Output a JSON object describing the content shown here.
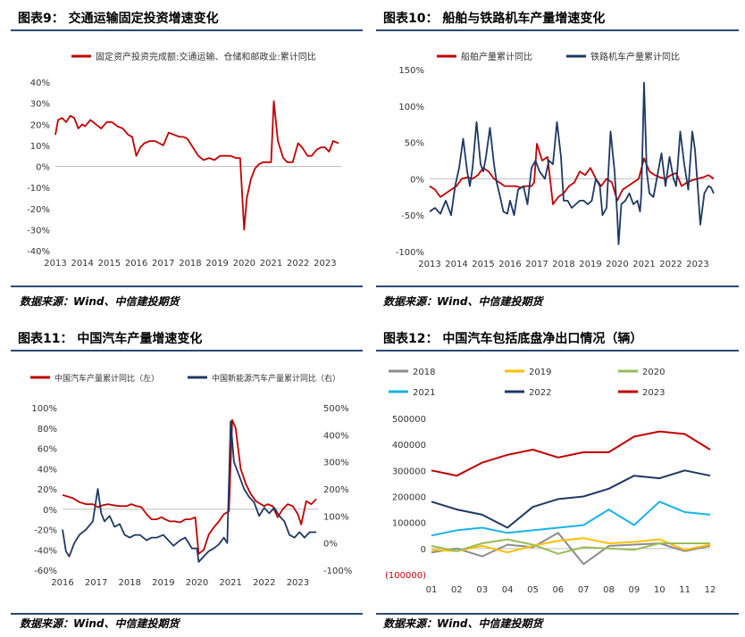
{
  "charts": [
    {
      "title": "图表9： 交通运输固定投资增速变化",
      "source": "数据来源：Wind、中信建投期货",
      "chart_data": {
        "type": "line",
        "legend_position": "top",
        "x_ticks": [
          "2013",
          "2014",
          "2015",
          "2016",
          "2017",
          "2018",
          "2019",
          "2020",
          "2021",
          "2022",
          "2023"
        ],
        "xlim": [
          2013.0,
          2023.6
        ],
        "ylim": [
          -40,
          40
        ],
        "y_ticks": [
          -40,
          -30,
          -20,
          -10,
          0,
          10,
          20,
          30,
          40
        ],
        "y_tick_labels": [
          "-40%",
          "-30%",
          "-20%",
          "-10%",
          "0%",
          "10%",
          "20%",
          "30%",
          "40%"
        ],
        "series": [
          {
            "name": "固定资产投资完成额:交通运输、仓储和邮政业:累计同比",
            "color": "#c00000",
            "axis": "left",
            "x": [
              2013.0,
              2013.1,
              2013.25,
              2013.4,
              2013.55,
              2013.7,
              2013.85,
              2014.0,
              2014.1,
              2014.3,
              2014.5,
              2014.7,
              2014.9,
              2015.1,
              2015.3,
              2015.5,
              2015.7,
              2015.85,
              2016.0,
              2016.15,
              2016.3,
              2016.5,
              2016.7,
              2016.85,
              2017.0,
              2017.2,
              2017.4,
              2017.6,
              2017.75,
              2017.9,
              2018.1,
              2018.3,
              2018.5,
              2018.7,
              2018.9,
              2019.1,
              2019.3,
              2019.5,
              2019.7,
              2019.85,
              2020.0,
              2020.1,
              2020.25,
              2020.4,
              2020.55,
              2020.7,
              2020.85,
              2021.0,
              2021.1,
              2021.25,
              2021.45,
              2021.6,
              2021.8,
              2022.0,
              2022.15,
              2022.35,
              2022.5,
              2022.7,
              2022.85,
              2023.0,
              2023.15,
              2023.3,
              2023.5
            ],
            "y": [
              15,
              22,
              23,
              21,
              24,
              23,
              18,
              20,
              19,
              22,
              20,
              18,
              21,
              21,
              19,
              18,
              15,
              14,
              5,
              9,
              11,
              12,
              12,
              11,
              10,
              16,
              15,
              14,
              14,
              13,
              9,
              5,
              3,
              4,
              3,
              5,
              5,
              5,
              4,
              4,
              -30,
              -15,
              -6,
              -1,
              1,
              2,
              2,
              2,
              31,
              12,
              4,
              2,
              2,
              11,
              9,
              5,
              5,
              8,
              9,
              9,
              7,
              12,
              11
            ]
          }
        ]
      }
    },
    {
      "title": "图表10： 船舶与铁路机车产量增速变化",
      "source": "数据来源：Wind、中信建投期货",
      "chart_data": {
        "type": "line",
        "legend_position": "top",
        "x_ticks": [
          "2013",
          "2014",
          "2015",
          "2016",
          "2017",
          "2018",
          "2019",
          "2020",
          "2021",
          "2022",
          "2023"
        ],
        "xlim": [
          2013.0,
          2023.6
        ],
        "ylim": [
          -100,
          150
        ],
        "y_ticks": [
          -100,
          -50,
          0,
          50,
          100,
          150
        ],
        "y_tick_labels": [
          "-100%",
          "-50%",
          "0%",
          "50%",
          "100%",
          "150%"
        ],
        "series": [
          {
            "name": "船舶产量累计同比",
            "color": "#c00000",
            "axis": "left",
            "x": [
              2013.0,
              2013.2,
              2013.4,
              2013.6,
              2013.8,
              2014.0,
              2014.2,
              2014.4,
              2014.6,
              2014.8,
              2015.0,
              2015.2,
              2015.4,
              2015.6,
              2015.8,
              2016.0,
              2016.2,
              2016.4,
              2016.6,
              2016.8,
              2016.9,
              2017.0,
              2017.2,
              2017.4,
              2017.6,
              2017.8,
              2018.0,
              2018.2,
              2018.4,
              2018.6,
              2018.8,
              2019.0,
              2019.2,
              2019.4,
              2019.6,
              2019.8,
              2020.0,
              2020.2,
              2020.4,
              2020.6,
              2020.8,
              2021.0,
              2021.2,
              2021.4,
              2021.6,
              2021.8,
              2022.0,
              2022.2,
              2022.4,
              2022.6,
              2022.8,
              2023.0,
              2023.2,
              2023.4,
              2023.6
            ],
            "y": [
              -10,
              -15,
              -25,
              -20,
              -15,
              -10,
              0,
              2,
              0,
              5,
              15,
              10,
              0,
              -5,
              -10,
              -10,
              -10,
              -12,
              -10,
              -10,
              -5,
              48,
              25,
              30,
              -35,
              -25,
              -20,
              -10,
              -5,
              10,
              5,
              15,
              0,
              -10,
              0,
              -5,
              -30,
              -15,
              -10,
              -5,
              0,
              28,
              10,
              5,
              2,
              0,
              5,
              8,
              -10,
              -5,
              -2,
              0,
              2,
              5,
              0
            ]
          },
          {
            "name": "铁路机车产量累计同比",
            "color": "#1f3864",
            "axis": "left",
            "x": [
              2013.0,
              2013.2,
              2013.4,
              2013.6,
              2013.8,
              2013.95,
              2014.1,
              2014.25,
              2014.4,
              2014.5,
              2014.6,
              2014.75,
              2014.9,
              2015.0,
              2015.1,
              2015.25,
              2015.4,
              2015.5,
              2015.6,
              2015.75,
              2015.9,
              2016.0,
              2016.15,
              2016.3,
              2016.5,
              2016.65,
              2016.8,
              2016.95,
              2017.1,
              2017.3,
              2017.45,
              2017.6,
              2017.75,
              2017.9,
              2018.0,
              2018.15,
              2018.3,
              2018.45,
              2018.6,
              2018.75,
              2018.9,
              2019.05,
              2019.2,
              2019.35,
              2019.45,
              2019.6,
              2019.75,
              2019.9,
              2020.0,
              2020.05,
              2020.15,
              2020.3,
              2020.45,
              2020.6,
              2020.75,
              2020.85,
              2020.9,
              2021.0,
              2021.1,
              2021.2,
              2021.35,
              2021.5,
              2021.65,
              2021.8,
              2021.95,
              2022.1,
              2022.2,
              2022.35,
              2022.5,
              2022.65,
              2022.8,
              2022.9,
              2023.0,
              2023.1,
              2023.25,
              2023.4,
              2023.5,
              2023.6
            ],
            "y": [
              -45,
              -40,
              -48,
              -30,
              -50,
              -10,
              15,
              55,
              10,
              -10,
              15,
              78,
              20,
              10,
              30,
              70,
              20,
              -5,
              -20,
              -45,
              -48,
              -30,
              -50,
              -15,
              -10,
              -35,
              15,
              25,
              10,
              0,
              25,
              20,
              78,
              30,
              -30,
              -30,
              -40,
              -35,
              -30,
              -30,
              -35,
              -30,
              0,
              -10,
              -50,
              -40,
              65,
              10,
              -50,
              -90,
              -35,
              -30,
              -20,
              -35,
              -30,
              -45,
              -20,
              132,
              10,
              -20,
              -25,
              5,
              35,
              -10,
              30,
              0,
              -10,
              65,
              20,
              -15,
              65,
              40,
              -10,
              -63,
              -20,
              -10,
              -12,
              -20
            ]
          }
        ]
      }
    },
    {
      "title": "图表11： 中国汽车产量增速变化",
      "source": "数据来源：Wind、中信建投期货",
      "chart_data": {
        "type": "line",
        "legend_position": "top",
        "x_ticks": [
          "2016",
          "2017",
          "2018",
          "2019",
          "2020",
          "2021",
          "2022",
          "2023"
        ],
        "xlim": [
          2016.0,
          2023.6
        ],
        "ylim": [
          -60,
          100
        ],
        "y_ticks": [
          -60,
          -40,
          -20,
          0,
          20,
          40,
          60,
          80,
          100
        ],
        "y_tick_labels": [
          "-60%",
          "-40%",
          "-20%",
          "0%",
          "20%",
          "40%",
          "60%",
          "80%",
          "100%"
        ],
        "y2lim": [
          -100,
          500
        ],
        "y2_ticks": [
          -100,
          0,
          100,
          200,
          300,
          400,
          500
        ],
        "y2_tick_labels": [
          "-100%",
          "0%",
          "100%",
          "200%",
          "300%",
          "400%",
          "500%"
        ],
        "series": [
          {
            "name": "中国汽车产量累计同比（左）",
            "color": "#c00000",
            "axis": "left",
            "x": [
              2016.0,
              2016.1,
              2016.3,
              2016.5,
              2016.7,
              2016.9,
              2017.05,
              2017.2,
              2017.35,
              2017.5,
              2017.7,
              2017.9,
              2018.05,
              2018.2,
              2018.35,
              2018.5,
              2018.65,
              2018.8,
              2018.95,
              2019.05,
              2019.2,
              2019.35,
              2019.5,
              2019.65,
              2019.8,
              2019.95,
              2020.05,
              2020.2,
              2020.35,
              2020.5,
              2020.65,
              2020.8,
              2020.95,
              2021.05,
              2021.15,
              2021.3,
              2021.45,
              2021.6,
              2021.75,
              2021.9,
              2022.0,
              2022.1,
              2022.25,
              2022.4,
              2022.55,
              2022.7,
              2022.85,
              2023.0,
              2023.1,
              2023.25,
              2023.4,
              2023.55
            ],
            "y": [
              14,
              13,
              11,
              7,
              5,
              5,
              2,
              4,
              5,
              4,
              3,
              3,
              5,
              3,
              2,
              -5,
              -10,
              -10,
              -8,
              -10,
              -12,
              -12,
              -13,
              -10,
              -10,
              -8,
              -44,
              -40,
              -25,
              -18,
              -12,
              -5,
              -2,
              88,
              80,
              40,
              25,
              15,
              8,
              5,
              3,
              5,
              3,
              -8,
              0,
              5,
              3,
              -5,
              -15,
              8,
              5,
              10
            ]
          },
          {
            "name": "中国新能源汽车产量累计同比（右）",
            "color": "#1f3864",
            "axis": "right",
            "x": [
              2016.0,
              2016.1,
              2016.2,
              2016.35,
              2016.5,
              2016.7,
              2016.9,
              2017.05,
              2017.15,
              2017.25,
              2017.4,
              2017.55,
              2017.7,
              2017.85,
              2018.0,
              2018.15,
              2018.3,
              2018.5,
              2018.65,
              2018.8,
              2019.0,
              2019.15,
              2019.3,
              2019.5,
              2019.65,
              2019.85,
              2020.0,
              2020.05,
              2020.2,
              2020.35,
              2020.5,
              2020.65,
              2020.8,
              2020.9,
              2021.0,
              2021.1,
              2021.25,
              2021.4,
              2021.55,
              2021.7,
              2021.85,
              2022.0,
              2022.15,
              2022.3,
              2022.45,
              2022.6,
              2022.75,
              2022.9,
              2023.05,
              2023.2,
              2023.35,
              2023.55
            ],
            "y": [
              50,
              -30,
              -50,
              0,
              30,
              50,
              80,
              200,
              110,
              80,
              100,
              60,
              70,
              30,
              20,
              30,
              30,
              10,
              20,
              20,
              30,
              10,
              -10,
              10,
              20,
              -20,
              -20,
              -70,
              -50,
              -30,
              -20,
              -5,
              20,
              0,
              450,
              300,
              250,
              200,
              170,
              150,
              100,
              130,
              110,
              130,
              100,
              80,
              30,
              20,
              40,
              20,
              40,
              40
            ]
          }
        ]
      }
    },
    {
      "title": "图表12： 中国汽车包括底盘净出口情况（辆）",
      "source": "数据来源：Wind、中信建投期货",
      "chart_data": {
        "type": "line",
        "legend_position": "top",
        "categories": [
          "01",
          "02",
          "03",
          "04",
          "05",
          "06",
          "07",
          "08",
          "09",
          "10",
          "11",
          "12"
        ],
        "ylim": [
          -100000,
          500000
        ],
        "y_ticks": [
          -100000,
          0,
          100000,
          200000,
          300000,
          400000,
          500000
        ],
        "y_tick_labels": [
          "(100000)",
          "0",
          "100000",
          "200000",
          "300000",
          "400000",
          "500000"
        ],
        "series": [
          {
            "name": "2018",
            "color": "#8c8c8c",
            "values": [
              -15000,
              0,
              -30000,
              15000,
              5000,
              60000,
              -60000,
              10000,
              15000,
              20000,
              -10000,
              10000
            ]
          },
          {
            "name": "2019",
            "color": "#ffc000",
            "values": [
              -5000,
              -10000,
              10000,
              -15000,
              10000,
              30000,
              40000,
              20000,
              25000,
              35000,
              -5000,
              15000
            ]
          },
          {
            "name": "2020",
            "color": "#9bbb59",
            "values": [
              10000,
              -10000,
              20000,
              35000,
              15000,
              -20000,
              5000,
              0,
              -5000,
              20000,
              20000,
              20000
            ]
          },
          {
            "name": "2021",
            "color": "#1ab2e8",
            "values": [
              50000,
              70000,
              80000,
              60000,
              70000,
              80000,
              90000,
              150000,
              90000,
              180000,
              140000,
              130000
            ]
          },
          {
            "name": "2022",
            "color": "#1f3864",
            "values": [
              180000,
              150000,
              130000,
              80000,
              160000,
              190000,
              200000,
              230000,
              280000,
              270000,
              300000,
              280000
            ]
          },
          {
            "name": "2023",
            "color": "#c00000",
            "values": [
              300000,
              280000,
              330000,
              360000,
              380000,
              350000,
              370000,
              370000,
              430000,
              450000,
              440000,
              380000
            ]
          }
        ]
      }
    }
  ]
}
